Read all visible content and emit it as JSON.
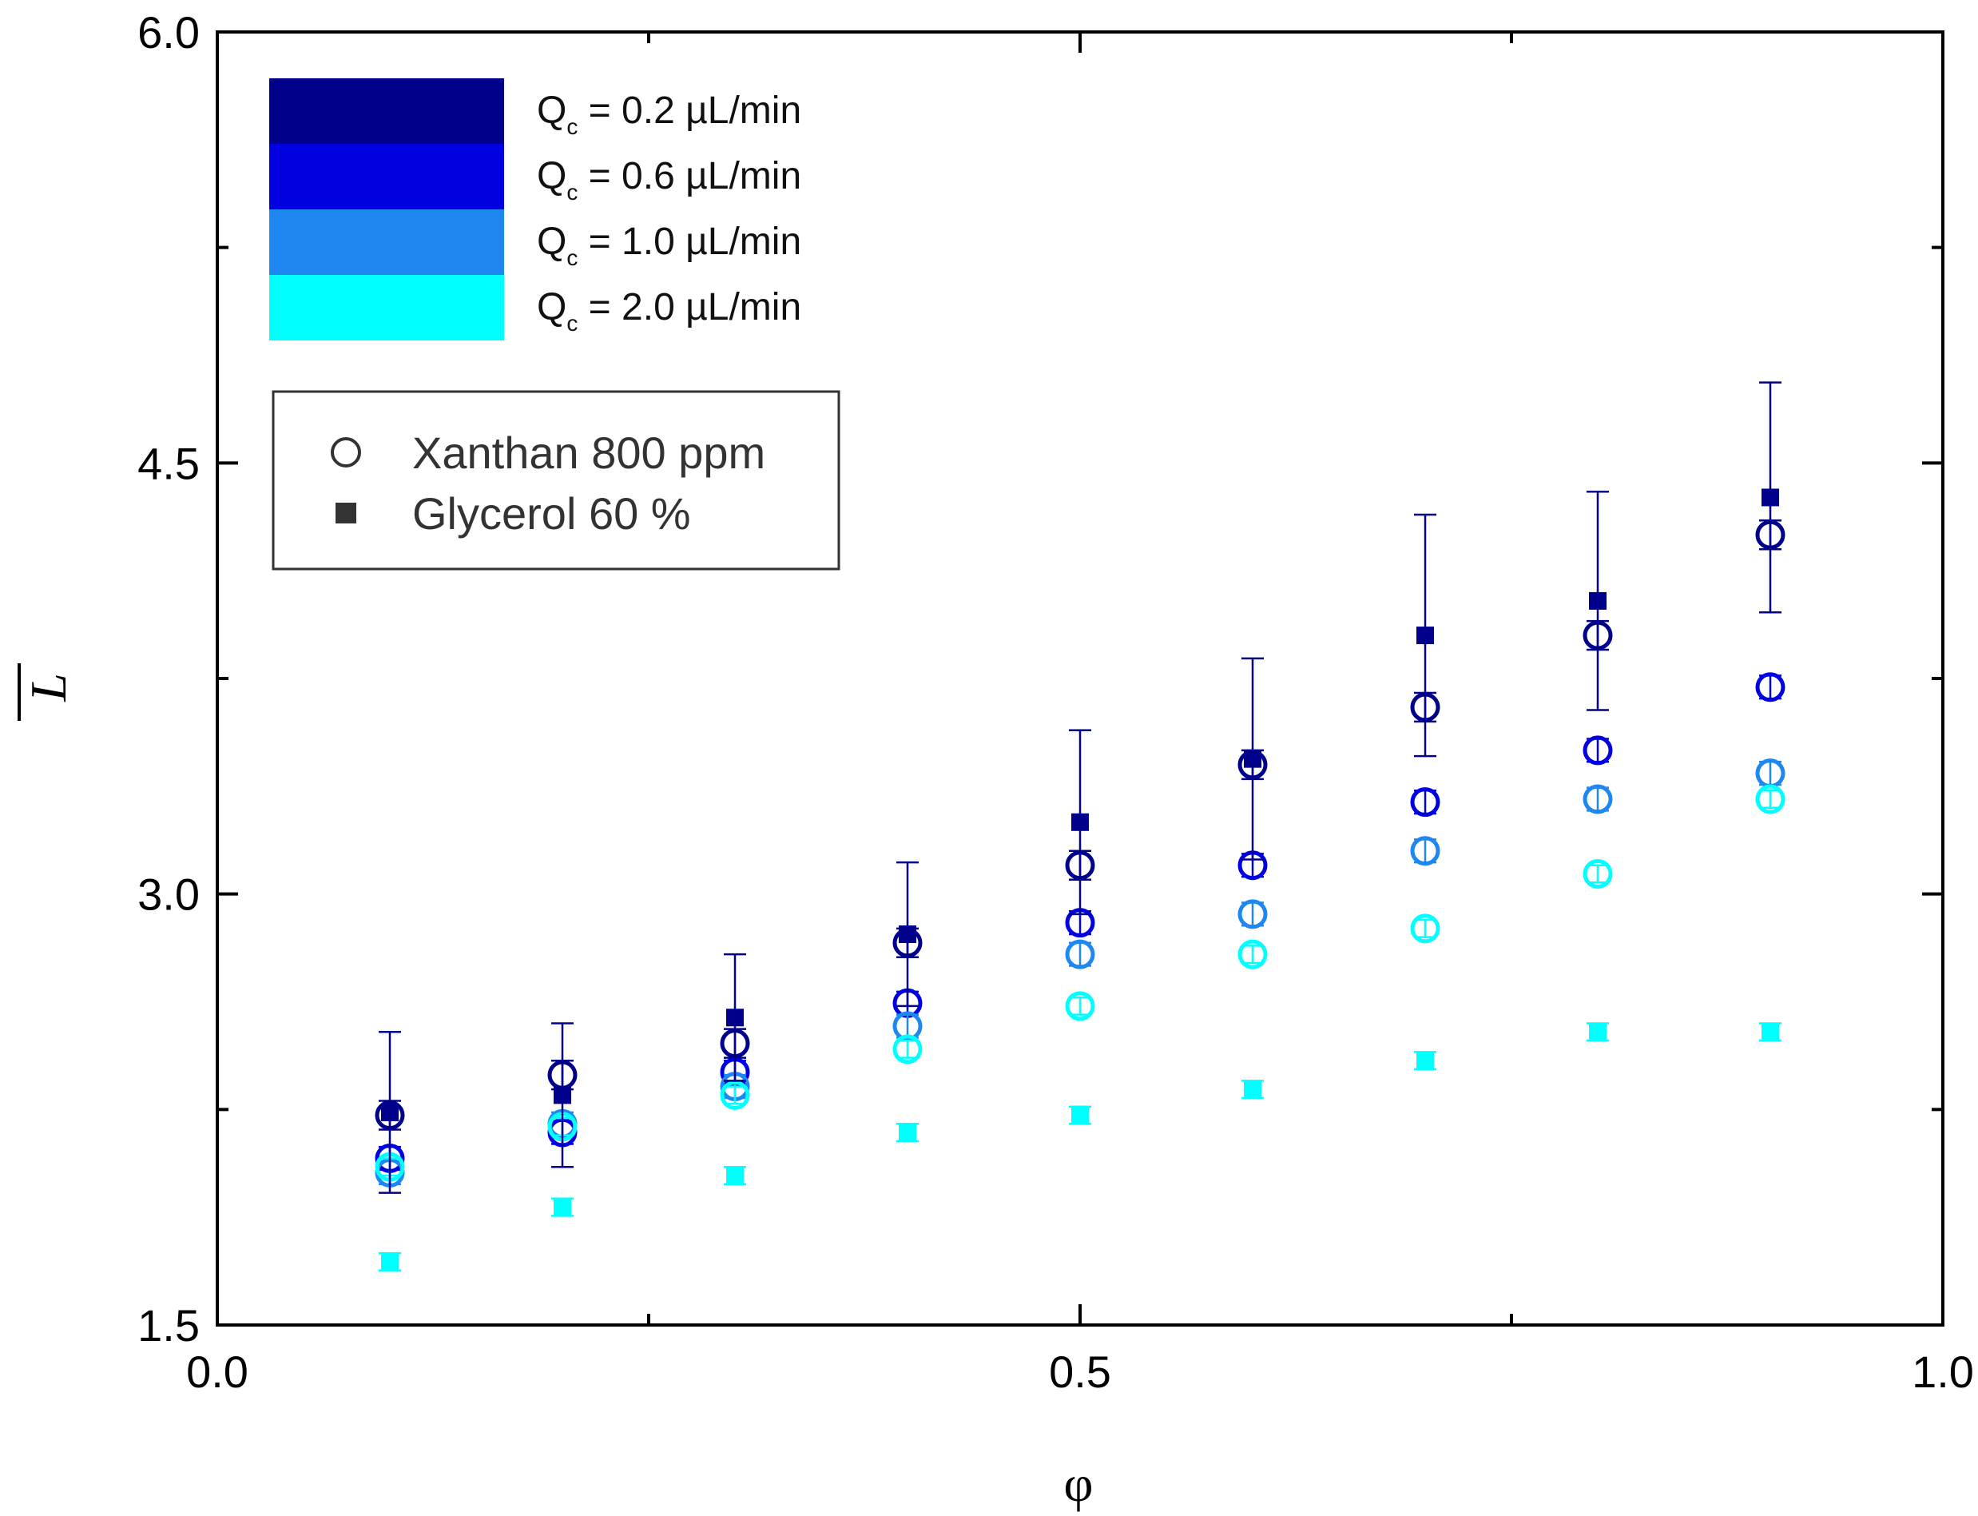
{
  "chart_data": {
    "type": "scatter",
    "xlabel": "φ",
    "ylabel": "L",
    "xlim": [
      0.0,
      1.0
    ],
    "ylim": [
      1.5,
      6.0
    ],
    "xticks": [
      0.0,
      0.5,
      1.0
    ],
    "xtick_labels": [
      "0.0",
      "0.5",
      "1.0"
    ],
    "xminor": [
      0.25,
      0.75
    ],
    "yticks": [
      1.5,
      3.0,
      4.5,
      6.0
    ],
    "ytick_labels": [
      "1.5",
      "3.0",
      "4.5",
      "6.0"
    ],
    "yminor": [
      2.25,
      3.75,
      5.25
    ],
    "grid": false,
    "x": [
      0.1,
      0.2,
      0.3,
      0.4,
      0.5,
      0.6,
      0.7,
      0.8,
      0.9
    ],
    "color_legend": {
      "position": "top-left",
      "entries": [
        {
          "prefix": "Q",
          "sub": "c",
          "text": " = 0.2  µL/min",
          "color": "#00008B"
        },
        {
          "prefix": "Q",
          "sub": "c",
          "text": " = 0.6  µL/min",
          "color": "#0000E0"
        },
        {
          "prefix": "Q",
          "sub": "c",
          "text": " = 1.0  µL/min",
          "color": "#1E88F0"
        },
        {
          "prefix": "Q",
          "sub": "c",
          "text": " = 2.0  µL/min",
          "color": "#00FFFF"
        }
      ]
    },
    "marker_legend": {
      "position": "upper-left",
      "entries": [
        {
          "marker": "circle",
          "label": "Xanthan  800 ppm"
        },
        {
          "marker": "square",
          "label": "Glycerol  60 %"
        }
      ]
    },
    "series": [
      {
        "name": "Xanthan Qc=0.2",
        "marker": "circle",
        "color": "#00008B",
        "values": [
          2.23,
          2.37,
          2.48,
          2.83,
          3.1,
          3.45,
          3.65,
          3.9,
          4.25
        ],
        "errors": [
          0.05,
          0.05,
          0.05,
          0.05,
          0.05,
          0.05,
          0.05,
          0.05,
          0.05
        ]
      },
      {
        "name": "Xanthan Qc=0.6",
        "marker": "circle",
        "color": "#0000E0",
        "values": [
          2.08,
          2.17,
          2.38,
          2.62,
          2.9,
          3.1,
          3.32,
          3.5,
          3.72
        ],
        "errors": [
          0.04,
          0.04,
          0.04,
          0.04,
          0.04,
          0.04,
          0.04,
          0.04,
          0.04
        ]
      },
      {
        "name": "Xanthan Qc=1.0",
        "marker": "circle",
        "color": "#1E88F0",
        "values": [
          2.03,
          2.2,
          2.33,
          2.54,
          2.79,
          2.93,
          3.15,
          3.33,
          3.42
        ],
        "errors": [
          0.04,
          0.04,
          0.04,
          0.04,
          0.04,
          0.04,
          0.04,
          0.04,
          0.04
        ]
      },
      {
        "name": "Xanthan Qc=2.0",
        "marker": "circle",
        "color": "#00FFFF",
        "values": [
          2.05,
          2.19,
          2.3,
          2.46,
          2.61,
          2.79,
          2.88,
          3.07,
          3.33
        ],
        "errors": [
          0.03,
          0.03,
          0.03,
          0.03,
          0.03,
          0.03,
          0.03,
          0.03,
          0.03
        ]
      },
      {
        "name": "Glycerol Qc=0.2",
        "marker": "square",
        "color": "#00008B",
        "values": [
          2.24,
          2.3,
          2.57,
          2.86,
          3.25,
          3.47,
          3.9,
          4.02,
          4.38
        ],
        "errors": [
          0.28,
          0.25,
          0.22,
          0.25,
          0.32,
          0.35,
          0.42,
          0.38,
          0.4
        ]
      },
      {
        "name": "Glycerol Qc=2.0",
        "marker": "square",
        "color": "#00FFFF",
        "values": [
          1.72,
          1.91,
          2.02,
          2.17,
          2.23,
          2.32,
          2.42,
          2.52,
          2.52
        ],
        "errors": [
          0.03,
          0.03,
          0.03,
          0.03,
          0.03,
          0.03,
          0.03,
          0.03,
          0.03
        ]
      }
    ]
  }
}
